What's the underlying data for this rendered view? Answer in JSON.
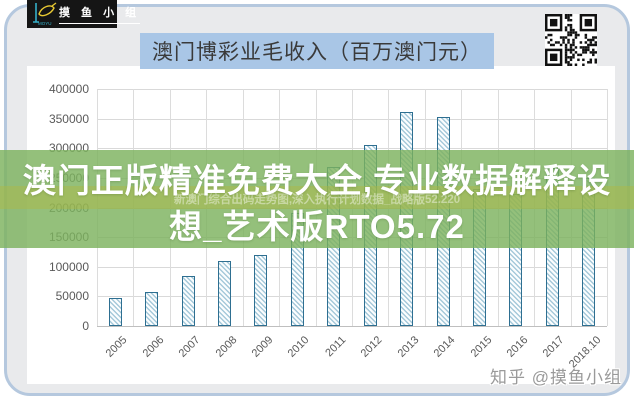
{
  "logo": {
    "brand": "摸 鱼 小 组",
    "sub": "MOYU"
  },
  "title": "澳门博彩业毛收入（百万澳门元）",
  "overlay": {
    "line1": "澳门正版精准免费大全,专业数据解释设",
    "line2": "想_艺术版RTO5.72",
    "faint_line": "新澳门综合出码走势图,深入执行计划数据_战略版52.220"
  },
  "watermark": "知乎 @摸鱼小组",
  "colors": {
    "frame_border": "#b5c8de",
    "frame_background": "#e9eaec",
    "title_highlight": "#a9c6e6",
    "overlay_green": "#7cb25e",
    "overlay_strip": "#b0b742",
    "bar_border": "#2e6f91",
    "bar_hatch": "#a6c9da",
    "gridline": "#d9d9d9"
  },
  "chart_data": {
    "type": "bar",
    "title": "澳门博彩业毛收入（百万澳门元）",
    "categories": [
      "2005",
      "2006",
      "2007",
      "2008",
      "2009",
      "2010",
      "2011",
      "2012",
      "2013",
      "2014",
      "2015",
      "2016",
      "2017",
      "2018.10"
    ],
    "values": [
      47000,
      57500,
      84000,
      110000,
      120000,
      190000,
      268000,
      305000,
      362000,
      352000,
      232000,
      223000,
      266000,
      250000
    ],
    "xlabel": "",
    "ylabel": "",
    "ylim": [
      0,
      400000
    ],
    "ytick_step": 50000,
    "y_ticks": [
      "400000",
      "350000",
      "300000",
      "250000",
      "200000",
      "150000",
      "100000",
      "50000",
      "0"
    ],
    "grid": true,
    "legend": "none",
    "bar_pattern": "diagonal-hatch"
  }
}
